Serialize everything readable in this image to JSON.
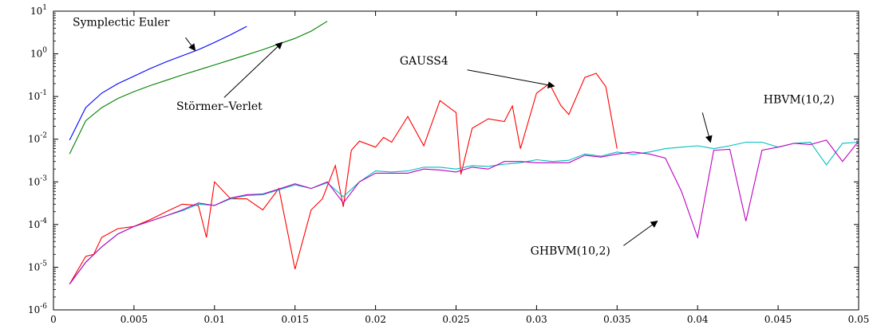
{
  "chart_data": {
    "type": "line",
    "title": "",
    "xlabel": "",
    "ylabel": "",
    "xlim": [
      0,
      0.05
    ],
    "ylim_log10": [
      -6,
      1
    ],
    "yscale": "log",
    "grid": false,
    "x_ticks": [
      "0",
      "0.005",
      "0.01",
      "0.015",
      "0.02",
      "0.025",
      "0.03",
      "0.035",
      "0.04",
      "0.045",
      "0.05"
    ],
    "x_tick_values": [
      0,
      0.005,
      0.01,
      0.015,
      0.02,
      0.025,
      0.03,
      0.035,
      0.04,
      0.045,
      0.05
    ],
    "y_ticks": [
      {
        "base": "10",
        "exp": "-6",
        "value": 1e-06
      },
      {
        "base": "10",
        "exp": "-5",
        "value": 1e-05
      },
      {
        "base": "10",
        "exp": "-4",
        "value": 0.0001
      },
      {
        "base": "10",
        "exp": "-3",
        "value": 0.001
      },
      {
        "base": "10",
        "exp": "-2",
        "value": 0.01
      },
      {
        "base": "10",
        "exp": "-1",
        "value": 0.1
      },
      {
        "base": "10",
        "exp": "0",
        "value": 1
      },
      {
        "base": "10",
        "exp": "1",
        "value": 10
      }
    ],
    "series": [
      {
        "name": "Symplectic Euler",
        "color": "#0000ff",
        "x": [
          0.001,
          0.002,
          0.003,
          0.004,
          0.005,
          0.006,
          0.007,
          0.008,
          0.009,
          0.01,
          0.011,
          0.012
        ],
        "y": [
          0.0095,
          0.055,
          0.12,
          0.2,
          0.3,
          0.45,
          0.65,
          0.9,
          1.25,
          1.85,
          2.8,
          4.4
        ]
      },
      {
        "name": "Störmer–Verlet",
        "color": "#008000",
        "x": [
          0.001,
          0.002,
          0.003,
          0.004,
          0.005,
          0.006,
          0.007,
          0.008,
          0.009,
          0.01,
          0.011,
          0.012,
          0.013,
          0.014,
          0.015,
          0.016,
          0.017
        ],
        "y": [
          0.0045,
          0.027,
          0.055,
          0.09,
          0.13,
          0.18,
          0.24,
          0.32,
          0.42,
          0.55,
          0.72,
          0.95,
          1.25,
          1.7,
          2.3,
          3.4,
          5.8
        ]
      },
      {
        "name": "GAUSS4",
        "color": "#ff0000",
        "x": [
          0.001,
          0.002,
          0.0025,
          0.003,
          0.004,
          0.005,
          0.006,
          0.007,
          0.008,
          0.009,
          0.0095,
          0.01,
          0.011,
          0.012,
          0.013,
          0.014,
          0.015,
          0.016,
          0.0167,
          0.0175,
          0.018,
          0.0185,
          0.019,
          0.02,
          0.0205,
          0.021,
          0.022,
          0.023,
          0.024,
          0.025,
          0.0253,
          0.026,
          0.027,
          0.028,
          0.0285,
          0.029,
          0.03,
          0.0308,
          0.0315,
          0.032,
          0.033,
          0.0337,
          0.0343,
          0.035
        ],
        "y": [
          4e-06,
          1.8e-05,
          2e-05,
          5e-05,
          8e-05,
          9e-05,
          0.00013,
          0.0002,
          0.0003,
          0.00028,
          5e-05,
          0.001,
          0.0004,
          0.0004,
          0.00022,
          0.0007,
          9e-06,
          0.00022,
          0.0004,
          0.0024,
          0.00026,
          0.0055,
          0.009,
          0.0065,
          0.011,
          0.0085,
          0.034,
          0.007,
          0.08,
          0.042,
          0.0015,
          0.018,
          0.03,
          0.026,
          0.06,
          0.006,
          0.12,
          0.2,
          0.062,
          0.038,
          0.28,
          0.35,
          0.17,
          0.006
        ]
      },
      {
        "name": "HBVM(10,2)",
        "color": "#00bfbf",
        "x": [
          0.001,
          0.002,
          0.003,
          0.004,
          0.005,
          0.006,
          0.007,
          0.008,
          0.009,
          0.01,
          0.011,
          0.012,
          0.013,
          0.014,
          0.015,
          0.016,
          0.017,
          0.018,
          0.019,
          0.02,
          0.021,
          0.022,
          0.023,
          0.024,
          0.025,
          0.026,
          0.027,
          0.028,
          0.029,
          0.03,
          0.031,
          0.032,
          0.033,
          0.034,
          0.035,
          0.036,
          0.037,
          0.038,
          0.039,
          0.04,
          0.041,
          0.042,
          0.043,
          0.044,
          0.045,
          0.046,
          0.047,
          0.048,
          0.049,
          0.05
        ],
        "y": [
          4e-06,
          1.3e-05,
          3e-05,
          6e-05,
          9e-05,
          0.00012,
          0.00016,
          0.00021,
          0.0003,
          0.00028,
          0.0004,
          0.00048,
          0.0005,
          0.00065,
          0.00085,
          0.0007,
          0.00095,
          0.00045,
          0.001,
          0.0018,
          0.0017,
          0.0018,
          0.0022,
          0.0022,
          0.002,
          0.0024,
          0.0023,
          0.0026,
          0.0028,
          0.0033,
          0.003,
          0.0032,
          0.0045,
          0.004,
          0.005,
          0.0044,
          0.005,
          0.006,
          0.0065,
          0.007,
          0.006,
          0.007,
          0.0085,
          0.0085,
          0.0065,
          0.008,
          0.0085,
          0.0025,
          0.008,
          0.0085
        ]
      },
      {
        "name": "GHBVM(10,2)",
        "color": "#bf00bf",
        "x": [
          0.001,
          0.002,
          0.003,
          0.004,
          0.005,
          0.006,
          0.007,
          0.008,
          0.009,
          0.01,
          0.011,
          0.012,
          0.013,
          0.014,
          0.015,
          0.016,
          0.017,
          0.018,
          0.019,
          0.02,
          0.021,
          0.022,
          0.023,
          0.024,
          0.025,
          0.026,
          0.027,
          0.028,
          0.029,
          0.03,
          0.031,
          0.032,
          0.033,
          0.034,
          0.035,
          0.036,
          0.037,
          0.038,
          0.039,
          0.04,
          0.041,
          0.042,
          0.043,
          0.044,
          0.045,
          0.046,
          0.047,
          0.048,
          0.049,
          0.05
        ],
        "y": [
          4e-06,
          1.3e-05,
          3e-05,
          6e-05,
          9e-05,
          0.00012,
          0.00016,
          0.00022,
          0.00032,
          0.00028,
          0.00042,
          0.0005,
          0.00052,
          0.00068,
          0.0009,
          0.0007,
          0.001,
          0.00032,
          0.001,
          0.0016,
          0.0016,
          0.0016,
          0.002,
          0.0019,
          0.0017,
          0.0022,
          0.002,
          0.003,
          0.003,
          0.0028,
          0.0028,
          0.0028,
          0.0042,
          0.0038,
          0.0045,
          0.005,
          0.0045,
          0.0036,
          0.0006,
          5e-05,
          0.0055,
          0.0058,
          0.00012,
          0.0055,
          0.0065,
          0.008,
          0.0075,
          0.0095,
          0.003,
          0.009
        ]
      }
    ],
    "annotations": [
      {
        "text": "Symplectic Euler",
        "x": 0.0042,
        "y": 4.5,
        "anchor": "middle",
        "arrow_to": [
          0.0088,
          1.2
        ],
        "arrow_from": [
          0.0082,
          2.4
        ]
      },
      {
        "text": "Störmer–Verlet",
        "x": 0.0103,
        "y": 0.048,
        "anchor": "middle",
        "arrow_to": [
          0.0142,
          1.85
        ],
        "arrow_from": [
          0.0106,
          0.095
        ]
      },
      {
        "text": "GAUSS4",
        "x": 0.0215,
        "y": 0.56,
        "anchor": "start",
        "arrow_to": [
          0.0311,
          0.175
        ],
        "arrow_from": [
          0.0257,
          0.42
        ]
      },
      {
        "text": "HBVM(10,2)",
        "x": 0.0463,
        "y": 0.07,
        "anchor": "middle",
        "arrow_to": [
          0.0408,
          0.0085
        ],
        "arrow_from": [
          0.0403,
          0.042
        ]
      },
      {
        "text": "GHBVM(10,2)",
        "x": 0.0321,
        "y": 2e-05,
        "anchor": "middle",
        "arrow_to": [
          0.0375,
          0.00012
        ],
        "arrow_from": [
          0.0354,
          3.2e-05
        ]
      }
    ]
  }
}
